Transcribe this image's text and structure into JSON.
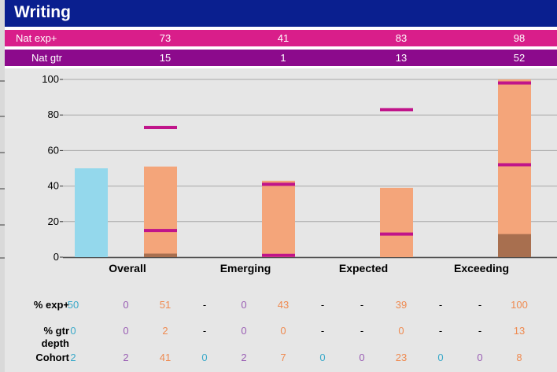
{
  "header": {
    "title": "Writing"
  },
  "rows": {
    "nat_exp": {
      "label": "Nat exp+",
      "values": [
        "73",
        "41",
        "83",
        "98"
      ]
    },
    "nat_gtr": {
      "label": "Nat gtr",
      "values": [
        "15",
        "1",
        "13",
        "52"
      ]
    }
  },
  "colors": {
    "title_bg": "#0a1f8f",
    "nat_exp_band": "#d91e8a",
    "nat_gtr_band": "#8c0a8c",
    "cohort_bar": "#94d8ec",
    "school_bar": "#f4a57a",
    "gtr_bar": "#a86f4f",
    "marker": "#c0148a",
    "cyan_text": "#3aa9c9",
    "purple_text": "#9a5fb4",
    "orange_text": "#ef8a50"
  },
  "chart_data": {
    "type": "bar",
    "categories": [
      "Overall",
      "Emerging",
      "Expected",
      "Exceeding"
    ],
    "ylim": [
      0,
      100
    ],
    "yticks": [
      0,
      20,
      40,
      60,
      80,
      100
    ],
    "grid": true,
    "series": [
      {
        "values": [
          50,
          null,
          null,
          null
        ]
      },
      {
        "values": [
          51,
          43,
          39,
          100
        ]
      },
      {
        "values": [
          2,
          0,
          0,
          13
        ]
      }
    ],
    "markers": {
      "nat_exp": [
        73,
        41,
        83,
        98
      ],
      "nat_gtr": [
        15,
        1,
        13,
        52
      ]
    }
  },
  "table": {
    "labels": {
      "exp": "% exp+",
      "gtr_line1": "% gtr",
      "gtr_line2": "depth",
      "cohort": "Cohort"
    },
    "exp": [
      "50",
      "0",
      "51",
      "-",
      "0",
      "43",
      "-",
      "-",
      "39",
      "-",
      "-",
      "100"
    ],
    "gtr": [
      "0",
      "0",
      "2",
      "-",
      "0",
      "0",
      "-",
      "-",
      "0",
      "-",
      "-",
      "13"
    ],
    "cohort": [
      "2",
      "2",
      "41",
      "0",
      "2",
      "7",
      "0",
      "0",
      "23",
      "0",
      "0",
      "8"
    ]
  }
}
